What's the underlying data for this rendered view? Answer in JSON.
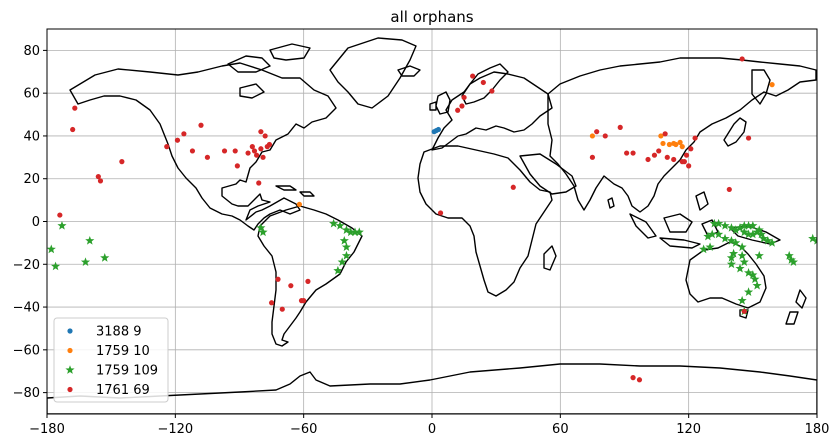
{
  "chart_data": {
    "type": "scatter",
    "title": "all orphans",
    "xlabel": "",
    "ylabel": "",
    "xlim": [
      -180,
      180
    ],
    "ylim": [
      -90,
      90
    ],
    "grid": true,
    "legend_position": "lower-left",
    "x_ticks": [
      -180,
      -120,
      -60,
      0,
      60,
      120,
      180
    ],
    "y_ticks": [
      -80,
      -60,
      -40,
      -20,
      0,
      20,
      40,
      60,
      80
    ],
    "x_tick_labels": [
      "−180",
      "−120",
      "−60",
      "0",
      "60",
      "120",
      "180"
    ],
    "y_tick_labels": [
      "−80",
      "−60",
      "−40",
      "−20",
      "0",
      "20",
      "40",
      "60",
      "80"
    ],
    "series": [
      {
        "name": "3188 9",
        "color": "#1f77b4",
        "marker": "circle",
        "points": [
          [
            1,
            42
          ],
          [
            2,
            42.5
          ],
          [
            3,
            43
          ]
        ]
      },
      {
        "name": "1759 10",
        "color": "#ff7f0e",
        "marker": "circle",
        "points": [
          [
            -62,
            8
          ],
          [
            75,
            40
          ],
          [
            107,
            40
          ],
          [
            108,
            36.5
          ],
          [
            111,
            36
          ],
          [
            113,
            36.5
          ],
          [
            114,
            36
          ],
          [
            116,
            37
          ],
          [
            117,
            35
          ],
          [
            159,
            64
          ]
        ]
      },
      {
        "name": "1759 109",
        "color": "#2ca02c",
        "marker": "star",
        "points": [
          [
            -178,
            -13
          ],
          [
            -176,
            -21
          ],
          [
            -173,
            -2
          ],
          [
            -160,
            -9
          ],
          [
            -153,
            -17
          ],
          [
            -162,
            -19
          ],
          [
            -80,
            -3
          ],
          [
            -79,
            -5
          ],
          [
            -46,
            -1
          ],
          [
            -43,
            -2
          ],
          [
            -40,
            -4
          ],
          [
            -38,
            -5
          ],
          [
            -36,
            -5
          ],
          [
            -41,
            -9
          ],
          [
            -40,
            -12
          ],
          [
            -40,
            -16
          ],
          [
            -42,
            -19
          ],
          [
            -44,
            -23
          ],
          [
            -34,
            -5
          ],
          [
            127,
            -13
          ],
          [
            130,
            -12
          ],
          [
            132,
            -1
          ],
          [
            134,
            -1
          ],
          [
            137,
            -2
          ],
          [
            140,
            -3
          ],
          [
            142,
            -4
          ],
          [
            144,
            -3
          ],
          [
            146,
            -5
          ],
          [
            148,
            -6
          ],
          [
            150,
            -6
          ],
          [
            152,
            -5
          ],
          [
            154,
            -6
          ],
          [
            129,
            -7
          ],
          [
            131,
            -6
          ],
          [
            134,
            -6
          ],
          [
            137,
            -8
          ],
          [
            140,
            -9
          ],
          [
            142,
            -10
          ],
          [
            146,
            -2
          ],
          [
            148,
            -2
          ],
          [
            150,
            -2
          ],
          [
            153,
            -4
          ],
          [
            155,
            -8
          ],
          [
            157,
            -9
          ],
          [
            159,
            -10
          ],
          [
            140,
            -20
          ],
          [
            144,
            -22
          ],
          [
            145,
            -12
          ],
          [
            145,
            -16
          ],
          [
            146,
            -19
          ],
          [
            148,
            -24
          ],
          [
            150,
            -25
          ],
          [
            151,
            -27
          ],
          [
            152,
            -30
          ],
          [
            148,
            -33
          ],
          [
            145,
            -37
          ],
          [
            146,
            -42
          ],
          [
            140,
            -17
          ],
          [
            141,
            -15
          ],
          [
            153,
            -16
          ],
          [
            167,
            -16
          ],
          [
            168,
            -18
          ],
          [
            169,
            -19
          ],
          [
            180,
            -9
          ],
          [
            178,
            -8
          ]
        ]
      },
      {
        "name": "1761 69",
        "color": "#d62728",
        "marker": "circle",
        "points": [
          [
            -174,
            3
          ],
          [
            -168,
            43
          ],
          [
            -167,
            53
          ],
          [
            -156,
            21
          ],
          [
            -155,
            19
          ],
          [
            -145,
            28
          ],
          [
            -124,
            35
          ],
          [
            -119,
            38
          ],
          [
            -116,
            41
          ],
          [
            -112,
            33
          ],
          [
            -108,
            45
          ],
          [
            -105,
            30
          ],
          [
            -97,
            33
          ],
          [
            -92,
            33
          ],
          [
            -91,
            26
          ],
          [
            -86,
            32
          ],
          [
            -84,
            35
          ],
          [
            -82,
            31
          ],
          [
            -80,
            34
          ],
          [
            -79,
            30
          ],
          [
            -78,
            40
          ],
          [
            -77,
            35
          ],
          [
            -76,
            36
          ],
          [
            -81,
            18
          ],
          [
            -83,
            33
          ],
          [
            -80,
            42
          ],
          [
            -72,
            -27
          ],
          [
            -75,
            -38
          ],
          [
            -70,
            -41
          ],
          [
            -66,
            -30
          ],
          [
            -60,
            -37
          ],
          [
            -58,
            -28
          ],
          [
            -61,
            -37
          ],
          [
            4,
            4
          ],
          [
            12,
            52
          ],
          [
            14,
            54
          ],
          [
            15,
            58
          ],
          [
            19,
            68
          ],
          [
            24,
            65
          ],
          [
            28,
            61
          ],
          [
            38,
            16
          ],
          [
            75,
            30
          ],
          [
            77,
            42
          ],
          [
            81,
            40
          ],
          [
            88,
            44
          ],
          [
            91,
            32
          ],
          [
            94,
            32
          ],
          [
            101,
            29
          ],
          [
            104,
            31
          ],
          [
            106,
            33
          ],
          [
            109,
            41
          ],
          [
            110,
            30
          ],
          [
            113,
            29
          ],
          [
            118,
            28
          ],
          [
            119,
            31
          ],
          [
            121,
            34
          ],
          [
            123,
            39
          ],
          [
            139,
            15
          ],
          [
            145,
            76
          ],
          [
            148,
            39
          ],
          [
            146,
            -42
          ],
          [
            94,
            -73
          ],
          [
            97,
            -74
          ],
          [
            117,
            28
          ],
          [
            120,
            26
          ]
        ]
      }
    ]
  }
}
